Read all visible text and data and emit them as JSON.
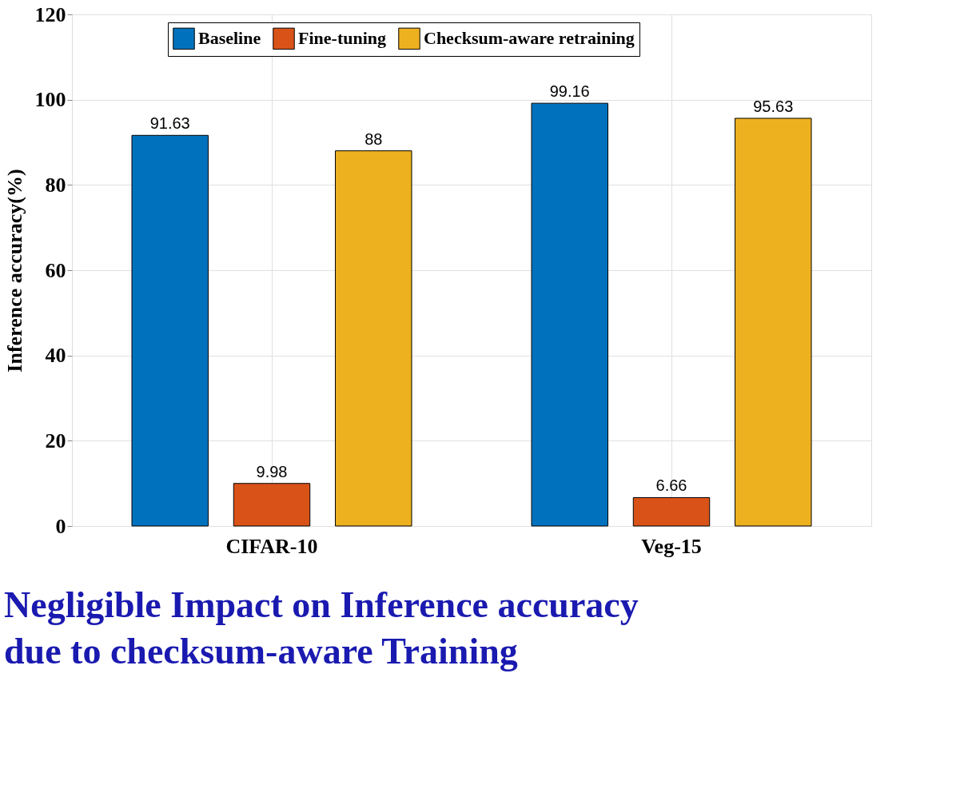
{
  "chart_data": {
    "type": "bar",
    "title": "Negligible Impact on Inference accuracy due to checksum-aware Training",
    "ylabel": "Inference accuracy(%)",
    "categories": [
      "CIFAR-10",
      "Veg-15"
    ],
    "series": [
      {
        "name": "Baseline",
        "color": "#0072bd",
        "values": [
          91.63,
          99.16
        ]
      },
      {
        "name": "Fine-tuning",
        "color": "#d95319",
        "values": [
          9.98,
          6.66
        ]
      },
      {
        "name": "Checksum-aware retraining",
        "color": "#edb120",
        "values": [
          88,
          95.63
        ]
      }
    ],
    "ylim": [
      0,
      120
    ],
    "yticks": [
      0,
      20,
      40,
      60,
      80,
      100,
      120
    ],
    "grid": true,
    "legend": "top",
    "data_labels": true
  }
}
